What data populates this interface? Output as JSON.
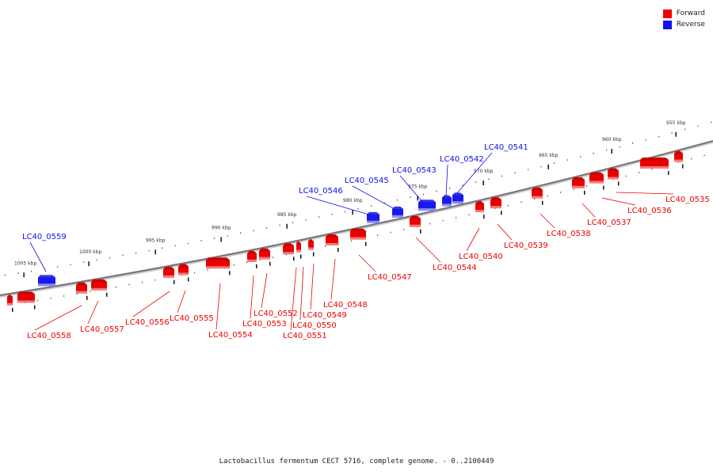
{
  "legend": {
    "forward_label": "Forward",
    "reverse_label": "Reverse",
    "forward_color": "#ee0000",
    "reverse_color": "#1010ee"
  },
  "caption": "Lactobacillus fermentum CECT 5716, complete genome. - 0..2100449",
  "ticks": [
    {
      "label": "955 kbp",
      "kbp": 955
    },
    {
      "label": "960 kbp",
      "kbp": 960
    },
    {
      "label": "965 kbp",
      "kbp": 965
    },
    {
      "label": "970 kbp",
      "kbp": 970
    },
    {
      "label": "975 kbp",
      "kbp": 975
    },
    {
      "label": "980 kbp",
      "kbp": 980
    },
    {
      "label": "985 kbp",
      "kbp": 985
    },
    {
      "label": "990 kbp",
      "kbp": 990
    },
    {
      "label": "995 kbp",
      "kbp": 995
    },
    {
      "label": "1000 kbp",
      "kbp": 1000
    },
    {
      "label": "1005 kbp",
      "kbp": 1005
    }
  ],
  "genes": [
    {
      "name": "LC40_0535",
      "strand": "forward"
    },
    {
      "name": "LC40_0536",
      "strand": "forward"
    },
    {
      "name": "LC40_0537",
      "strand": "forward"
    },
    {
      "name": "LC40_0538",
      "strand": "forward"
    },
    {
      "name": "LC40_0539",
      "strand": "forward"
    },
    {
      "name": "LC40_0540",
      "strand": "forward"
    },
    {
      "name": "LC40_0541",
      "strand": "reverse"
    },
    {
      "name": "LC40_0542",
      "strand": "reverse"
    },
    {
      "name": "LC40_0543",
      "strand": "reverse"
    },
    {
      "name": "LC40_0544",
      "strand": "forward"
    },
    {
      "name": "LC40_0545",
      "strand": "reverse"
    },
    {
      "name": "LC40_0546",
      "strand": "reverse"
    },
    {
      "name": "LC40_0547",
      "strand": "forward"
    },
    {
      "name": "LC40_0548",
      "strand": "forward"
    },
    {
      "name": "LC40_0549",
      "strand": "forward"
    },
    {
      "name": "LC40_0550",
      "strand": "forward"
    },
    {
      "name": "LC40_0551",
      "strand": "forward"
    },
    {
      "name": "LC40_0552",
      "strand": "forward"
    },
    {
      "name": "LC40_0553",
      "strand": "forward"
    },
    {
      "name": "LC40_0554",
      "strand": "forward"
    },
    {
      "name": "LC40_0555",
      "strand": "forward"
    },
    {
      "name": "LC40_0556",
      "strand": "forward"
    },
    {
      "name": "LC40_0557",
      "strand": "forward"
    },
    {
      "name": "LC40_0558",
      "strand": "forward"
    },
    {
      "name": "LC40_0559",
      "strand": "reverse"
    }
  ]
}
